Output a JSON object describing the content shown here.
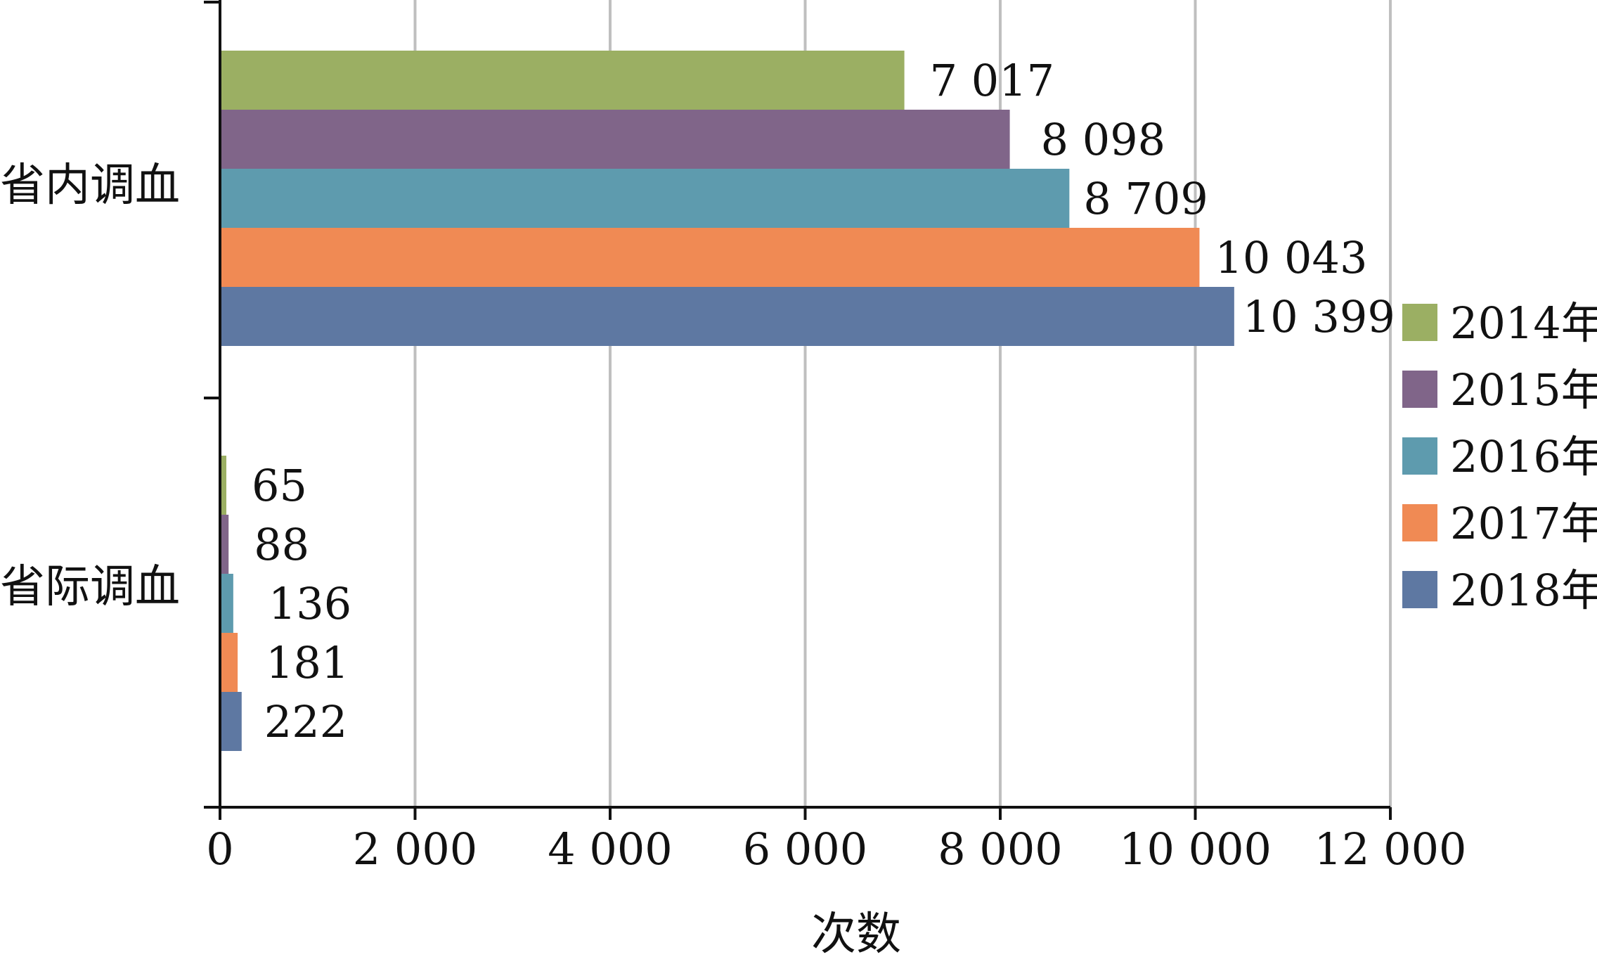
{
  "chart_data": {
    "type": "bar",
    "orientation": "horizontal",
    "categories": [
      "省内调血",
      "省际调血"
    ],
    "series": [
      {
        "name": "2014年",
        "color": "#9BAF63",
        "values": [
          7017,
          65
        ]
      },
      {
        "name": "2015年",
        "color": "#806589",
        "values": [
          8098,
          88
        ]
      },
      {
        "name": "2016年",
        "color": "#5E9BAE",
        "values": [
          8709,
          136
        ]
      },
      {
        "name": "2017年",
        "color": "#F08A54",
        "values": [
          10043,
          181
        ]
      },
      {
        "name": "2018年",
        "color": "#5E78A2",
        "values": [
          10399,
          222
        ]
      }
    ],
    "data_labels": [
      [
        "7 017",
        "8 098",
        "8 709",
        "10 043",
        "10 399"
      ],
      [
        "65",
        "88",
        "136",
        "181",
        "222"
      ]
    ],
    "xlabel": "次数",
    "ylabel": "",
    "xlim": [
      0,
      12000
    ],
    "xticks": [
      0,
      2000,
      4000,
      6000,
      8000,
      10000,
      12000
    ],
    "xtick_labels": [
      "0",
      "2 000",
      "4 000",
      "6 000",
      "8 000",
      "10 000",
      "12 000"
    ],
    "grid": "vertical",
    "legend": "right"
  }
}
